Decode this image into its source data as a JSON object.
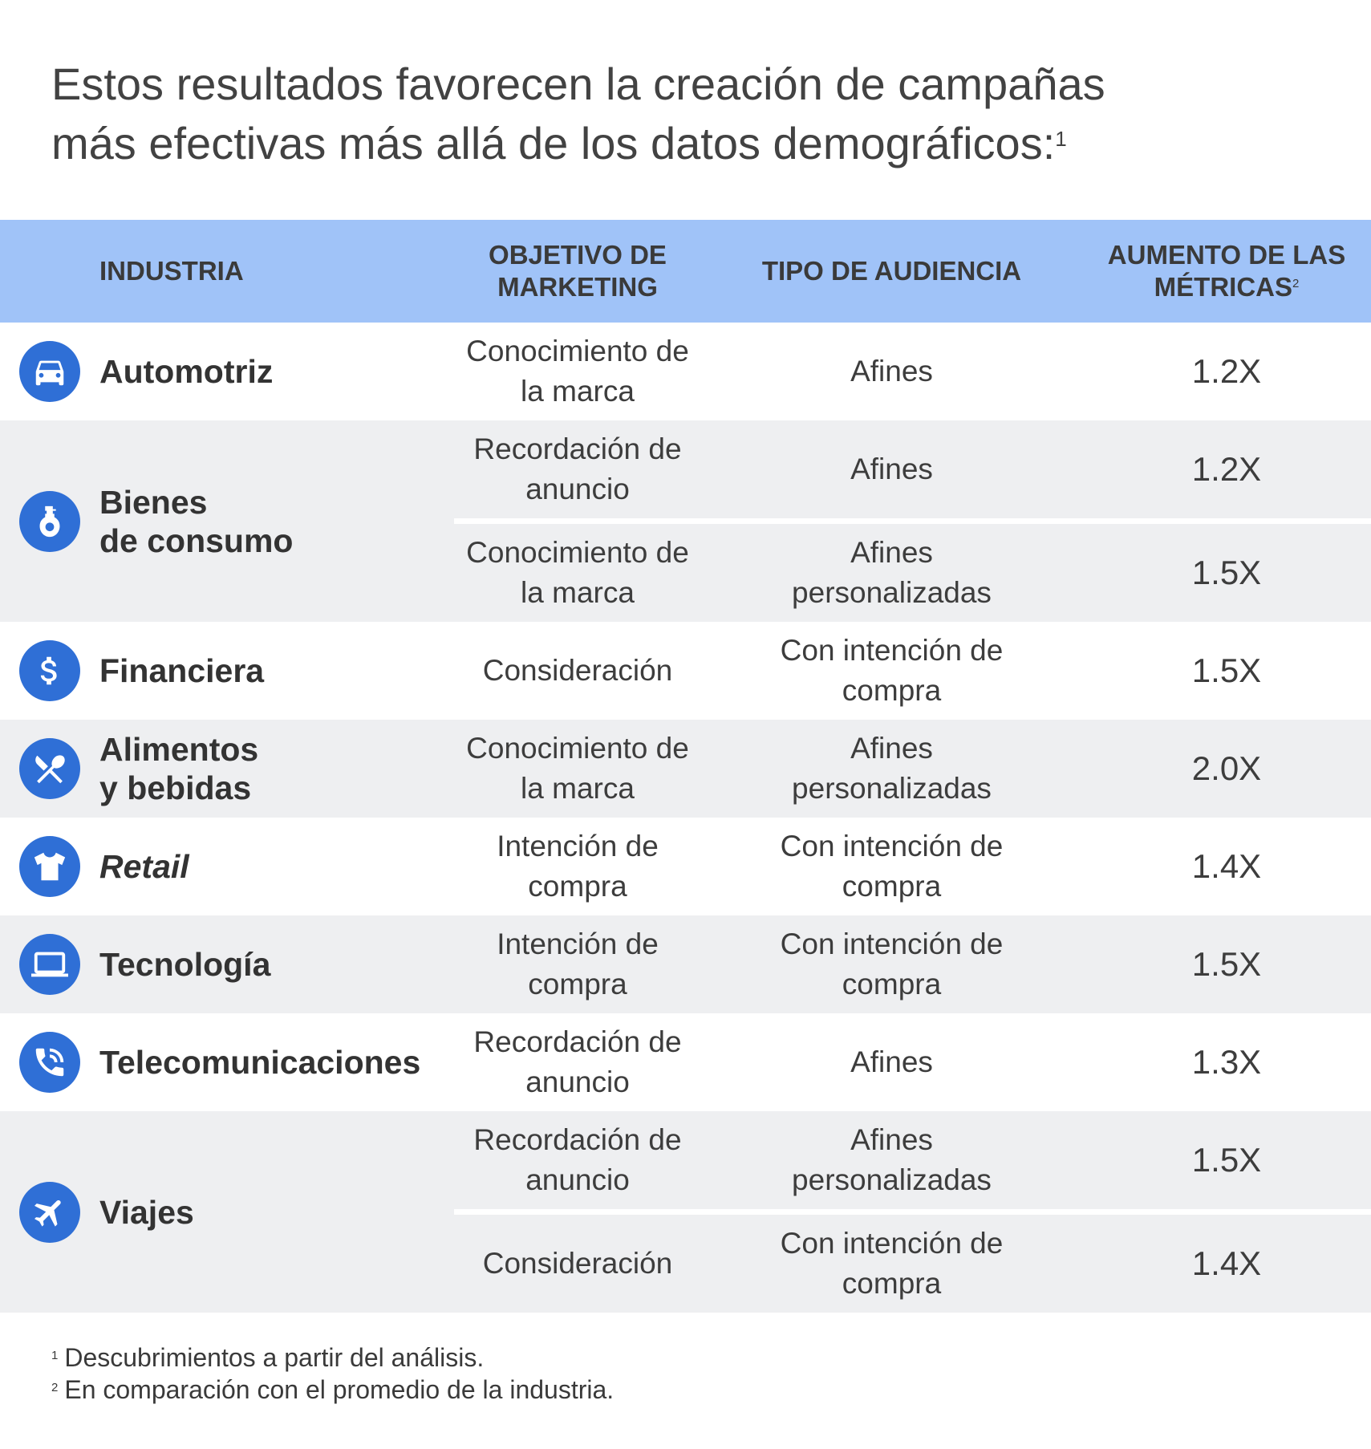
{
  "title": {
    "line1": "Estos resultados favorecen la creación de campañas",
    "line2": "más efectivas más allá de los datos demográficos:",
    "footnote_ref": "1"
  },
  "table": {
    "headers": {
      "industry": "INDUSTRIA",
      "objective_line1": "OBJETIVO DE",
      "objective_line2": "MARKETING",
      "audience": "TIPO DE AUDIENCIA",
      "increase_line1": "AUMENTO DE LAS",
      "increase_line2": "MÉTRICAS",
      "increase_ref": "2"
    },
    "rows": [
      {
        "icon": "car-icon",
        "industry_line1": "Automotriz",
        "industry_line2": "",
        "entries": [
          {
            "objective_line1": "Conocimiento de",
            "objective_line2": "la marca",
            "audience_line1": "Afines",
            "audience_line2": "",
            "increase": "1.2X"
          }
        ]
      },
      {
        "icon": "soap-bottle-icon",
        "industry_line1": "Bienes",
        "industry_line2": "de consumo",
        "entries": [
          {
            "objective_line1": "Recordación de",
            "objective_line2": "anuncio",
            "audience_line1": "Afines",
            "audience_line2": "",
            "increase": "1.2X"
          },
          {
            "objective_line1": "Conocimiento de",
            "objective_line2": "la marca",
            "audience_line1": "Afines",
            "audience_line2": "personalizadas",
            "increase": "1.5X"
          }
        ]
      },
      {
        "icon": "dollar-icon",
        "industry_line1": "Financiera",
        "industry_line2": "",
        "entries": [
          {
            "objective_line1": "Consideración",
            "objective_line2": "",
            "audience_line1": "Con intención de",
            "audience_line2": "compra",
            "increase": "1.5X"
          }
        ]
      },
      {
        "icon": "fork-knife-icon",
        "industry_line1": "Alimentos",
        "industry_line2": "y bebidas",
        "entries": [
          {
            "objective_line1": "Conocimiento de",
            "objective_line2": "la marca",
            "audience_line1": "Afines",
            "audience_line2": "personalizadas",
            "increase": "2.0X"
          }
        ]
      },
      {
        "icon": "tshirt-icon",
        "industry_line1": "Retail",
        "industry_line2": "",
        "entries": [
          {
            "objective_line1": "Intención de",
            "objective_line2": "compra",
            "audience_line1": "Con intención de",
            "audience_line2": "compra",
            "increase": "1.4X"
          }
        ]
      },
      {
        "icon": "laptop-icon",
        "industry_line1": "Tecnología",
        "industry_line2": "",
        "entries": [
          {
            "objective_line1": "Intención de",
            "objective_line2": "compra",
            "audience_line1": "Con intención de",
            "audience_line2": "compra",
            "increase": "1.5X"
          }
        ]
      },
      {
        "icon": "phone-icon",
        "industry_line1": "Telecomunicaciones",
        "industry_line2": "",
        "entries": [
          {
            "objective_line1": "Recordación de",
            "objective_line2": "anuncio",
            "audience_line1": "Afines",
            "audience_line2": "",
            "increase": "1.3X"
          }
        ]
      },
      {
        "icon": "airplane-icon",
        "industry_line1": "Viajes",
        "industry_line2": "",
        "entries": [
          {
            "objective_line1": "Recordación de",
            "objective_line2": "anuncio",
            "audience_line1": "Afines",
            "audience_line2": "personalizadas",
            "increase": "1.5X"
          },
          {
            "objective_line1": "Consideración",
            "objective_line2": "",
            "audience_line1": "Con intención de",
            "audience_line2": "compra",
            "increase": "1.4X"
          }
        ]
      }
    ]
  },
  "footnotes": [
    {
      "mark": "1",
      "text": "Descubrimientos a partir del análisis."
    },
    {
      "mark": "2",
      "text": "En comparación con el promedio de la industria."
    }
  ],
  "colors": {
    "header_bg": "#a0c3f8",
    "icon_bg": "#2f6fd6",
    "stripe_bg": "#eeeff1",
    "text": "#333333"
  }
}
